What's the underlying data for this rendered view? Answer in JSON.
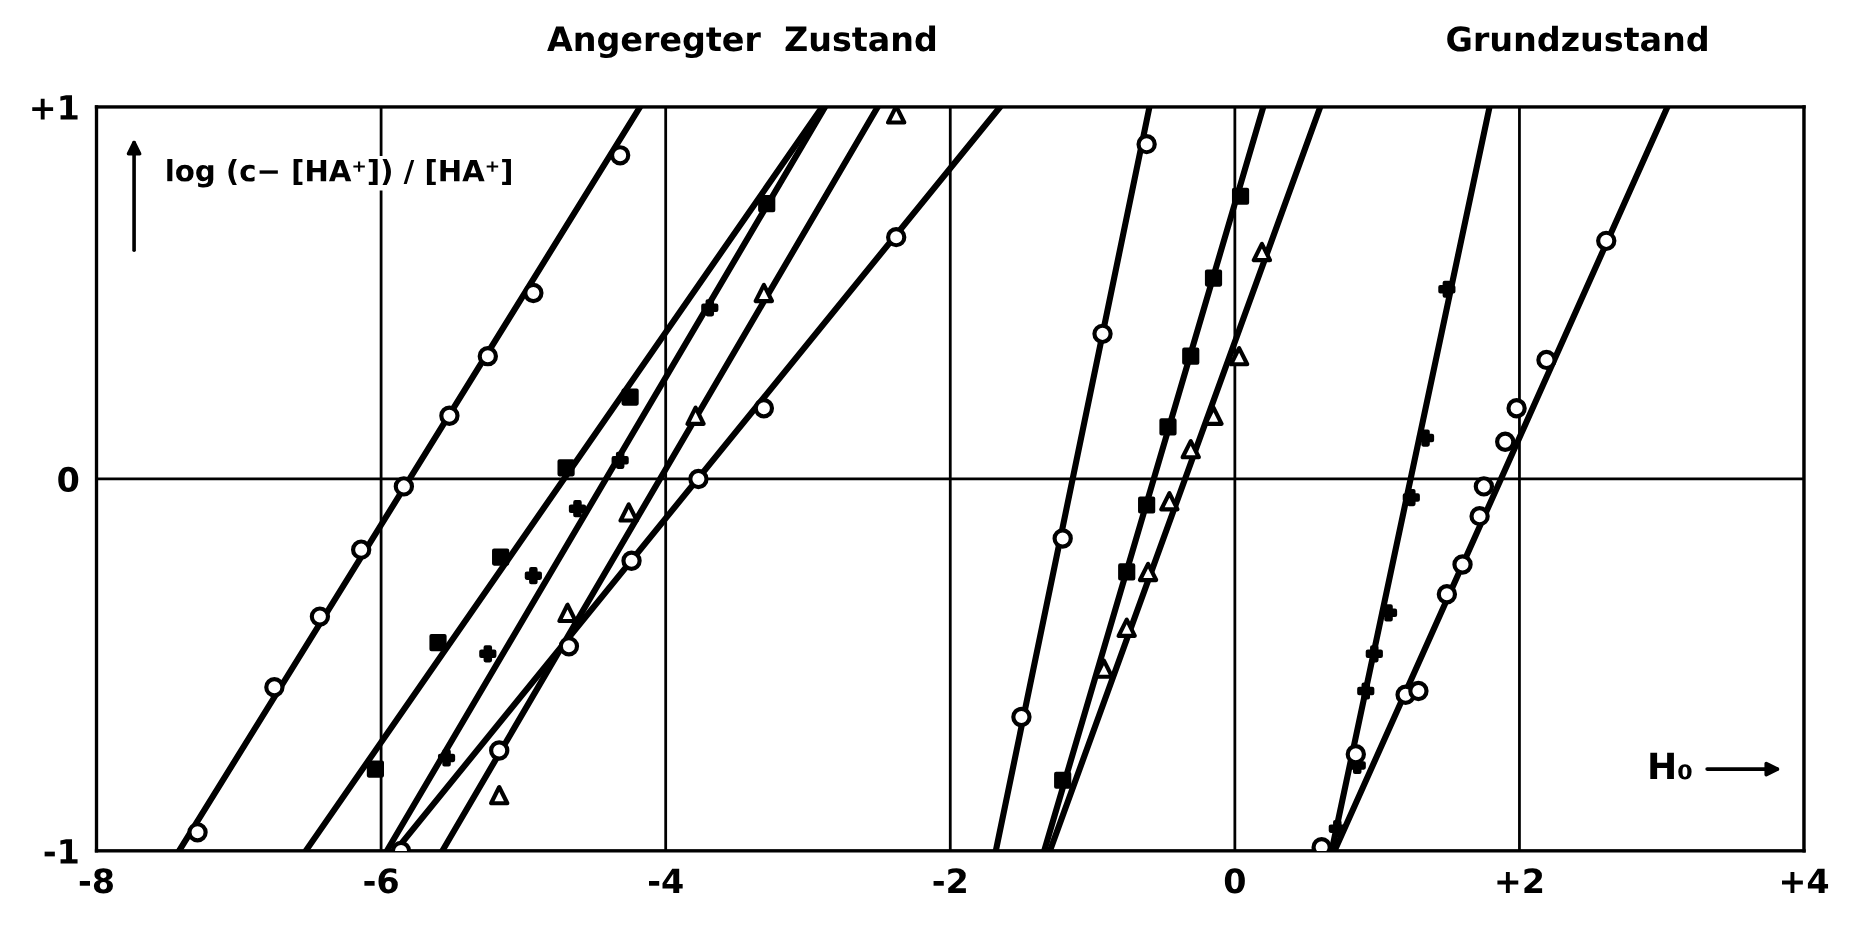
{
  "chart_data": {
    "type": "line",
    "ylabel": "log (c− [HA⁺]) / [HA⁺]",
    "xlabel": "H₀",
    "annotations": [
      "Angeregter  Zustand",
      "Grundzustand"
    ],
    "xlim": [
      -8,
      4
    ],
    "ylim": [
      -1,
      1
    ],
    "xticks": [
      -8,
      -6,
      -4,
      -2,
      0,
      {
        "value": 2,
        "label": "+2"
      },
      {
        "value": 4,
        "label": "+4"
      }
    ],
    "yticks": [
      -1,
      0,
      {
        "value": 1,
        "label": "+1"
      }
    ],
    "grid": true,
    "legend": false,
    "series": [
      {
        "color": "#000000",
        "marker": "none",
        "x": [
          -7.42,
          -4.18
        ],
        "values": [
          -1,
          1
        ]
      },
      {
        "type": "scatter",
        "color": "#000000",
        "marker": "circle",
        "x": [
          -7.29,
          -6.75,
          -6.43,
          -6.14,
          -5.84,
          -5.52,
          -5.25,
          -4.93,
          -4.32
        ],
        "values": [
          -0.95,
          -0.56,
          -0.37,
          -0.19,
          -0.02,
          0.17,
          0.33,
          0.5,
          0.87
        ]
      },
      {
        "color": "#000000",
        "marker": "none",
        "x": [
          -6.53,
          -2.9
        ],
        "values": [
          -1,
          1
        ]
      },
      {
        "type": "scatter",
        "color": "#000000",
        "marker": "square",
        "x": [
          -6.04,
          -5.6,
          -5.16,
          -4.7,
          -4.25,
          -3.29
        ],
        "values": [
          -0.78,
          -0.44,
          -0.21,
          0.03,
          0.22,
          0.74
        ]
      },
      {
        "color": "#000000",
        "marker": "none",
        "x": [
          -5.96,
          -2.88
        ],
        "values": [
          -1,
          1
        ]
      },
      {
        "type": "scatter",
        "color": "#000000",
        "marker": "cross",
        "x": [
          -5.54,
          -5.25,
          -4.93,
          -4.62,
          -4.32,
          -3.69
        ],
        "values": [
          -0.75,
          -0.47,
          -0.26,
          -0.08,
          0.05,
          0.46
        ]
      },
      {
        "color": "#000000",
        "marker": "none",
        "x": [
          -5.57,
          -2.51
        ],
        "values": [
          -1,
          1
        ]
      },
      {
        "type": "scatter",
        "color": "#000000",
        "marker": "triangle",
        "x": [
          -5.17,
          -4.69,
          -4.26,
          -3.79,
          -3.31,
          -2.38
        ],
        "values": [
          -0.85,
          -0.36,
          -0.09,
          0.17,
          0.5,
          0.98
        ]
      },
      {
        "color": "#000000",
        "marker": "none",
        "x": [
          -5.9,
          -1.65
        ],
        "values": [
          -1,
          1
        ]
      },
      {
        "type": "scatter",
        "color": "#000000",
        "marker": "circle",
        "x": [
          -5.86,
          -5.17,
          -4.68,
          -4.24,
          -3.77,
          -3.31,
          -2.38
        ],
        "values": [
          -1.0,
          -0.73,
          -0.45,
          -0.22,
          0.0,
          0.19,
          0.65
        ]
      },
      {
        "color": "#000000",
        "marker": "none",
        "x": [
          -1.68,
          -0.6
        ],
        "values": [
          -1,
          1
        ]
      },
      {
        "type": "scatter",
        "color": "#000000",
        "marker": "circle",
        "x": [
          -1.5,
          -1.21,
          -0.93,
          -0.62
        ],
        "values": [
          -0.64,
          -0.16,
          0.39,
          0.9
        ]
      },
      {
        "color": "#000000",
        "marker": "none",
        "x": [
          -1.34,
          0.2
        ],
        "values": [
          -1,
          1
        ]
      },
      {
        "type": "scatter",
        "color": "#000000",
        "marker": "square",
        "x": [
          -1.21,
          -0.76,
          -0.62,
          -0.47,
          -0.31,
          -0.15,
          0.04
        ],
        "values": [
          -0.81,
          -0.25,
          -0.07,
          0.14,
          0.33,
          0.54,
          0.76
        ]
      },
      {
        "color": "#000000",
        "marker": "none",
        "x": [
          -1.3,
          0.6
        ],
        "values": [
          -1,
          1
        ]
      },
      {
        "type": "scatter",
        "color": "#000000",
        "marker": "triangle",
        "x": [
          -0.92,
          -0.76,
          -0.61,
          -0.46,
          -0.31,
          -0.15,
          0.03,
          0.19
        ],
        "values": [
          -0.51,
          -0.4,
          -0.25,
          -0.06,
          0.08,
          0.17,
          0.33,
          0.61
        ]
      },
      {
        "color": "#000000",
        "marker": "none",
        "x": [
          0.68,
          1.79
        ],
        "values": [
          -1,
          1
        ]
      },
      {
        "type": "scatter",
        "color": "#000000",
        "marker": "cross",
        "x": [
          0.72,
          0.86,
          0.92,
          0.98,
          1.08,
          1.24,
          1.34,
          1.49
        ],
        "values": [
          -0.94,
          -0.77,
          -0.57,
          -0.47,
          -0.36,
          -0.05,
          0.11,
          0.51
        ]
      },
      {
        "color": "#000000",
        "marker": "none",
        "x": [
          0.7,
          3.04
        ],
        "values": [
          -1,
          1
        ]
      },
      {
        "type": "scatter",
        "color": "#000000",
        "marker": "circle",
        "x": [
          0.61,
          0.85,
          1.2,
          1.29,
          1.49,
          1.6,
          1.72,
          1.75,
          1.9,
          1.98,
          2.19,
          2.61
        ],
        "values": [
          -0.99,
          -0.74,
          -0.58,
          -0.57,
          -0.31,
          -0.23,
          -0.1,
          -0.02,
          0.1,
          0.19,
          0.32,
          0.64
        ]
      }
    ]
  }
}
